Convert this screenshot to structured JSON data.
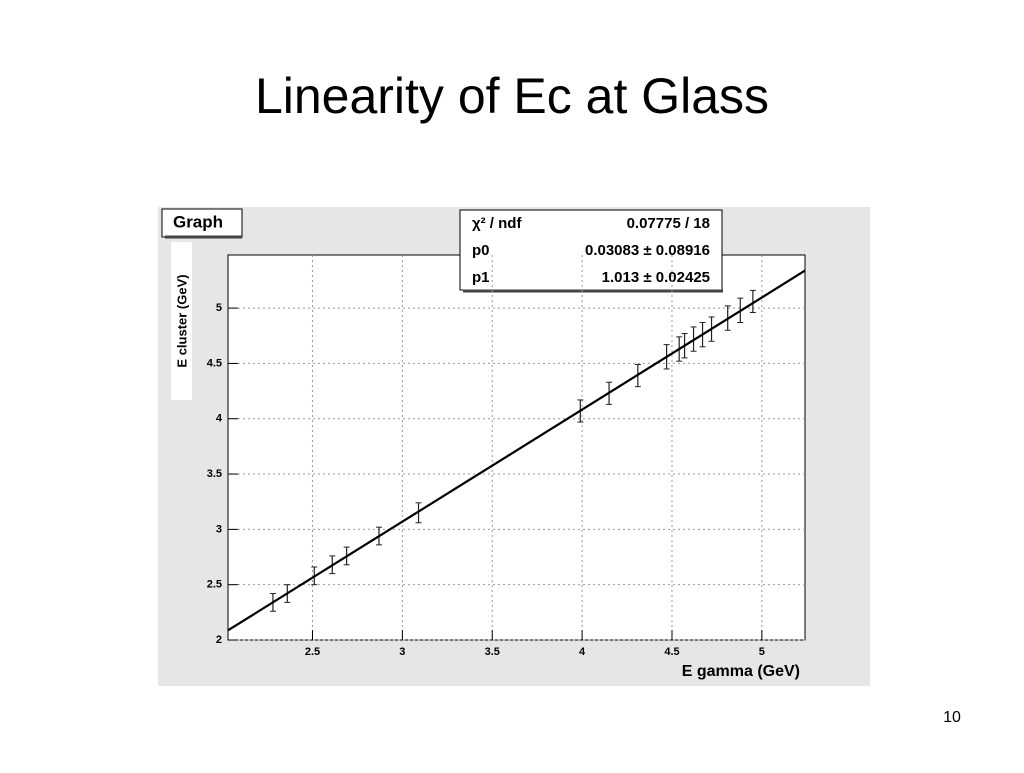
{
  "slide": {
    "title": "Linearity of Ec at Glass",
    "page_number": "10"
  },
  "chart_data": {
    "type": "scatter",
    "graph_name": "Graph",
    "x_label": "E gamma (GeV)",
    "y_label": "E cluster (GeV)",
    "x": [
      2.28,
      2.36,
      2.51,
      2.61,
      2.69,
      2.87,
      3.09,
      3.99,
      4.15,
      4.31,
      4.47,
      4.54,
      4.57,
      4.62,
      4.67,
      4.72,
      4.81,
      4.88,
      4.95
    ],
    "values": [
      2.34,
      2.42,
      2.58,
      2.68,
      2.76,
      2.94,
      3.15,
      4.07,
      4.23,
      4.39,
      4.56,
      4.63,
      4.66,
      4.72,
      4.76,
      4.81,
      4.91,
      4.98,
      5.06
    ],
    "errors": [
      0.08,
      0.08,
      0.08,
      0.08,
      0.08,
      0.08,
      0.09,
      0.1,
      0.1,
      0.1,
      0.11,
      0.11,
      0.11,
      0.11,
      0.11,
      0.11,
      0.11,
      0.11,
      0.1
    ],
    "color": "#222222",
    "fit": {
      "p0": 0.03083,
      "p1": 1.013
    },
    "stats": [
      {
        "label": "χ² / ndf",
        "text": "0.07775 / 18"
      },
      {
        "label": "p0",
        "text": "0.03083 ± 0.08916"
      },
      {
        "label": "p1",
        "text": "1.013 ± 0.02425"
      }
    ],
    "xlim": [
      2.03,
      5.24
    ],
    "ylim": [
      2,
      5.48
    ],
    "xticks": [
      2.5,
      3,
      3.5,
      4,
      4.5,
      5
    ],
    "yticks": [
      2,
      2.5,
      3,
      3.5,
      4,
      4.5,
      5
    ],
    "grid": true
  }
}
